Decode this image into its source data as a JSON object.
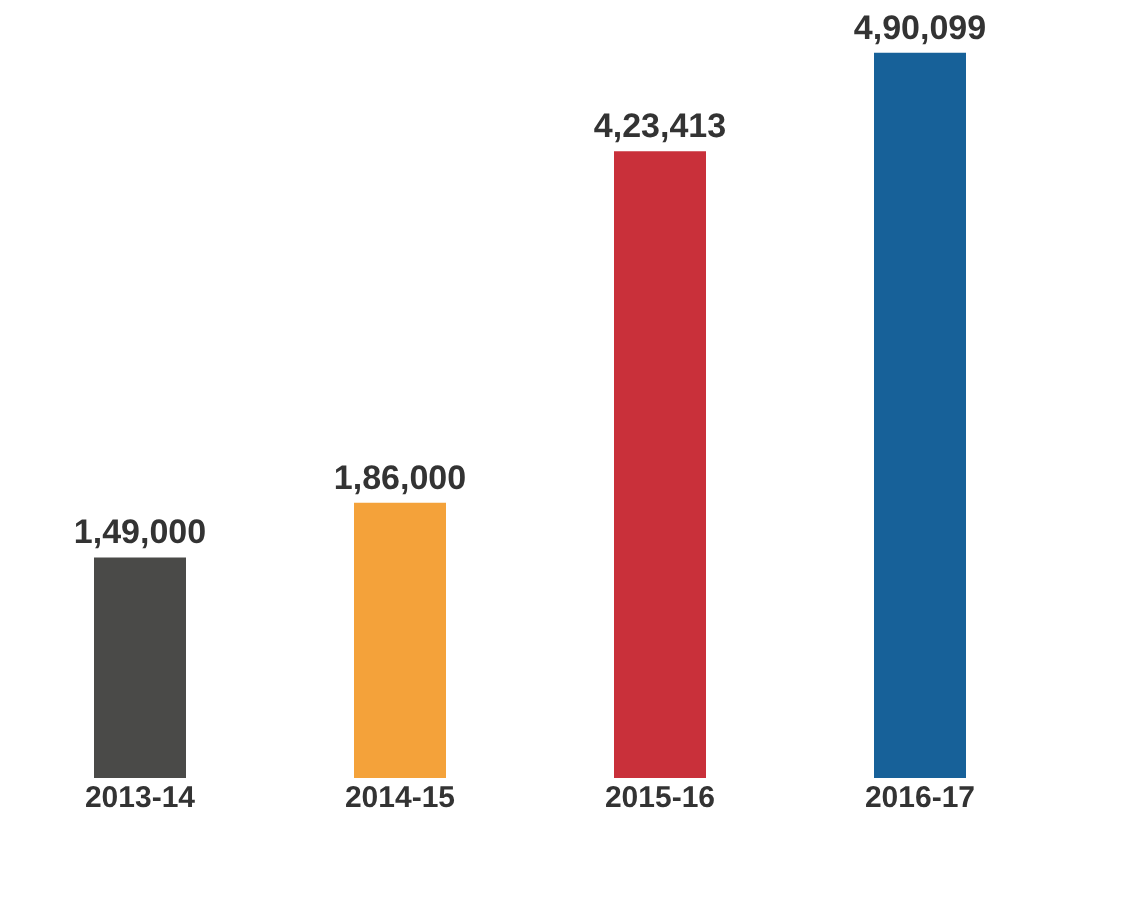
{
  "chart_data": {
    "type": "bar",
    "categories": [
      "2013-14",
      "2014-15",
      "2015-16",
      "2016-17"
    ],
    "values": [
      149000,
      186000,
      423413,
      490099
    ],
    "value_labels": [
      "1,49,000",
      "1,86,000",
      "4,23,413",
      "4,90,099"
    ],
    "colors": [
      "#4a4a48",
      "#f4a23a",
      "#c9303a",
      "#176199"
    ]
  }
}
